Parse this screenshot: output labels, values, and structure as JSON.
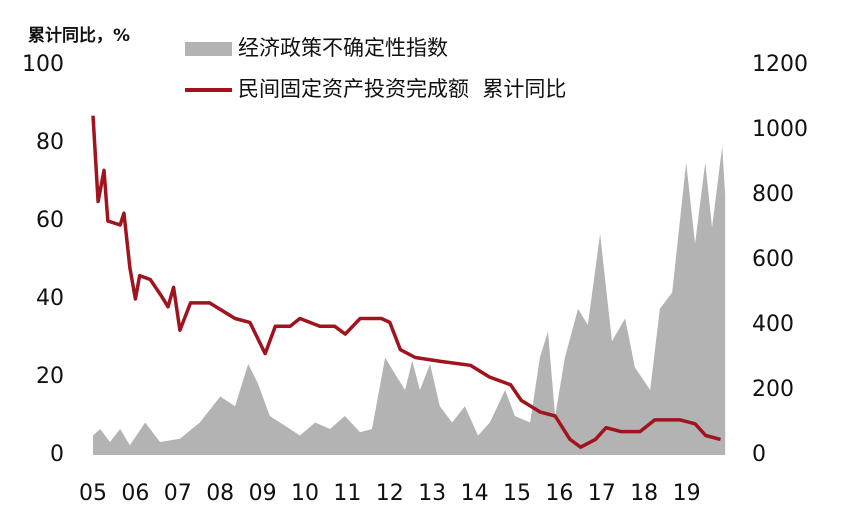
{
  "chart_data": {
    "type": "dual-axis",
    "y_label": "累计同比，%",
    "xlim": [
      2005,
      2020
    ],
    "xticks": [
      {
        "value": 2005,
        "label": "05"
      },
      {
        "value": 2006,
        "label": "06"
      },
      {
        "value": 2007,
        "label": "07"
      },
      {
        "value": 2008,
        "label": "08"
      },
      {
        "value": 2009,
        "label": "09"
      },
      {
        "value": 2010,
        "label": "10"
      },
      {
        "value": 2011,
        "label": "11"
      },
      {
        "value": 2012,
        "label": "12"
      },
      {
        "value": 2013,
        "label": "13"
      },
      {
        "value": 2014,
        "label": "14"
      },
      {
        "value": 2015,
        "label": "15"
      },
      {
        "value": 2016,
        "label": "16"
      },
      {
        "value": 2017,
        "label": "17"
      },
      {
        "value": 2018,
        "label": "18"
      },
      {
        "value": 2019,
        "label": "19"
      }
    ],
    "ylim": [
      0,
      100
    ],
    "yticks": [
      0,
      20,
      40,
      60,
      80,
      100
    ],
    "y2lim": [
      0,
      1200
    ],
    "y2ticks": [
      0,
      200,
      400,
      600,
      800,
      1000,
      1200
    ],
    "series": [
      {
        "name": "经济政策不确定性指数",
        "type": "area",
        "axis": "y2",
        "color": "#b3b3b3",
        "x": [
          2005.0,
          2005.17,
          2005.4,
          2005.64,
          2005.87,
          2006.23,
          2006.58,
          2007.05,
          2007.52,
          2008.0,
          2008.35,
          2008.66,
          2008.89,
          2009.17,
          2009.53,
          2009.88,
          2010.24,
          2010.59,
          2010.94,
          2011.3,
          2011.58,
          2011.89,
          2012.12,
          2012.36,
          2012.53,
          2012.71,
          2012.95,
          2013.18,
          2013.47,
          2013.77,
          2014.08,
          2014.36,
          2014.72,
          2014.95,
          2015.31,
          2015.54,
          2015.73,
          2015.9,
          2016.13,
          2016.44,
          2016.67,
          2016.96,
          2017.24,
          2017.55,
          2017.78,
          2018.14,
          2018.37,
          2018.66,
          2018.99,
          2019.2,
          2019.44,
          2019.6,
          2019.84,
          2019.91
        ],
        "values": [
          60,
          80,
          40,
          80,
          30,
          100,
          40,
          50,
          100,
          180,
          150,
          280,
          220,
          120,
          90,
          60,
          100,
          80,
          120,
          70,
          80,
          300,
          250,
          200,
          290,
          200,
          280,
          150,
          100,
          150,
          60,
          100,
          200,
          120,
          100,
          300,
          380,
          120,
          300,
          450,
          400,
          680,
          350,
          420,
          270,
          200,
          450,
          500,
          900,
          650,
          900,
          700,
          950,
          800
        ]
      },
      {
        "name": "民间固定资产投资完成额  累计同比",
        "type": "line",
        "axis": "y",
        "color": "#a0141e",
        "x": [
          2005.0,
          2005.12,
          2005.26,
          2005.35,
          2005.64,
          2005.73,
          2005.87,
          2006.0,
          2006.1,
          2006.35,
          2006.6,
          2006.77,
          2006.9,
          2007.05,
          2007.3,
          2007.75,
          2008.35,
          2008.7,
          2009.06,
          2009.3,
          2009.65,
          2009.88,
          2010.35,
          2010.7,
          2010.95,
          2011.3,
          2011.8,
          2012.0,
          2012.25,
          2012.6,
          2013.2,
          2013.9,
          2014.35,
          2014.85,
          2015.1,
          2015.55,
          2015.9,
          2016.25,
          2016.5,
          2016.85,
          2017.1,
          2017.45,
          2017.9,
          2018.25,
          2018.85,
          2019.2,
          2019.45,
          2019.8
        ],
        "values": [
          87,
          65,
          73,
          60,
          59,
          62,
          48,
          40,
          46,
          45,
          41,
          38,
          43,
          32,
          39,
          39,
          35,
          34,
          26,
          33,
          33,
          35,
          33,
          33,
          31,
          35,
          35,
          34,
          27,
          25,
          24,
          23,
          20,
          18,
          14,
          11,
          10,
          4,
          2,
          4,
          7,
          6,
          6,
          9,
          9,
          8,
          5,
          4
        ]
      }
    ]
  }
}
